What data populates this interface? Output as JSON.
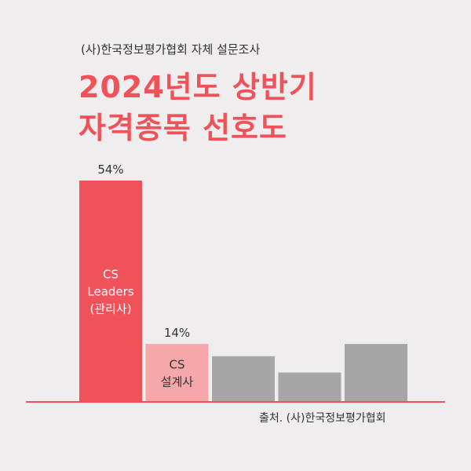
{
  "header": {
    "subtitle": "(사)한국정보평가협회 자체 설문조사",
    "title_line1": "2024년도 상반기",
    "title_line2": "자격종목 선호도"
  },
  "footer": {
    "source": "출처. (사)한국정보평가협회"
  },
  "colors": {
    "background": "#efeded",
    "accent": "#f0525a",
    "secondary": "#f6a7a9",
    "neutral": "#a6a6a6",
    "text": "#333333"
  },
  "chart_data": {
    "type": "bar",
    "title": "",
    "xlabel": "",
    "ylabel": "",
    "ylim": [
      0,
      54
    ],
    "grid": false,
    "legend": "none",
    "categories": [
      [
        "CS",
        "Leaders",
        "(관리사)"
      ],
      [
        "CS",
        "설계사"
      ],
      [],
      [],
      []
    ],
    "values": [
      54,
      14,
      11,
      7,
      14
    ],
    "value_labels": [
      "54%",
      "14%",
      "",
      "",
      ""
    ],
    "bar_colors": [
      "#f0525a",
      "#f6a7a9",
      "#a6a6a6",
      "#a6a6a6",
      "#a6a6a6"
    ],
    "category_label_colors": [
      "#ffffff",
      "#333333",
      "#333333",
      "#333333",
      "#333333"
    ]
  }
}
